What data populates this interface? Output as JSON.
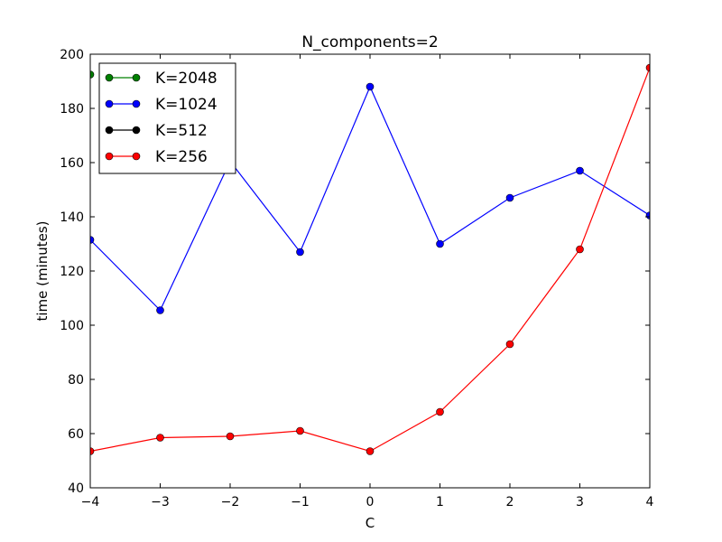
{
  "chart_data": {
    "type": "line",
    "title": "N_components=2",
    "xlabel": "C",
    "ylabel": "time (minutes)",
    "xlim": [
      -4,
      4
    ],
    "ylim": [
      40,
      200
    ],
    "xticks": [
      -4,
      -3,
      -2,
      -1,
      0,
      1,
      2,
      3,
      4
    ],
    "yticks": [
      40,
      60,
      80,
      100,
      120,
      140,
      160,
      180,
      200
    ],
    "xtick_labels": [
      "−4",
      "−3",
      "−2",
      "−1",
      "0",
      "1",
      "2",
      "3",
      "4"
    ],
    "ytick_labels": [
      "40",
      "60",
      "80",
      "100",
      "120",
      "140",
      "160",
      "180",
      "200"
    ],
    "grid": false,
    "legend_position": "top-left",
    "series": [
      {
        "name": "K=2048",
        "color": "#008000",
        "x": [
          -4
        ],
        "y": [
          192.5
        ]
      },
      {
        "name": "K=1024",
        "color": "#0000ff",
        "x": [
          -4,
          -3,
          -2,
          -1,
          0,
          1,
          2,
          3,
          4
        ],
        "y": [
          131.5,
          105.5,
          160.5,
          127.0,
          188.0,
          130.0,
          147.0,
          157.0,
          140.5
        ]
      },
      {
        "name": "K=512",
        "color": "#000000",
        "x": [],
        "y": []
      },
      {
        "name": "K=256",
        "color": "#ff0000",
        "x": [
          -4,
          -3,
          -2,
          -1,
          0,
          1,
          2,
          3,
          4
        ],
        "y": [
          53.5,
          58.5,
          59.0,
          61.0,
          53.5,
          68.0,
          93.0,
          128.0,
          195.0
        ]
      }
    ]
  }
}
